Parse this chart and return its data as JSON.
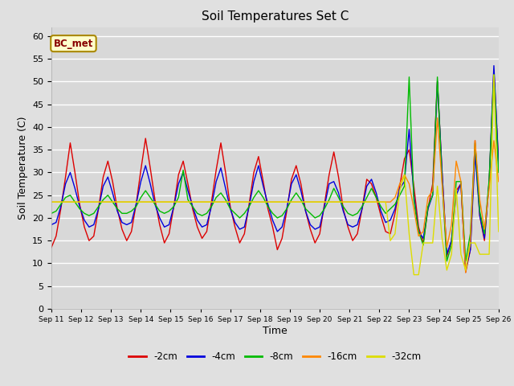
{
  "title": "Soil Temperatures Set C",
  "xlabel": "Time",
  "ylabel": "Soil Temperature (C)",
  "annotation": "BC_met",
  "ylim": [
    0,
    62
  ],
  "yticks": [
    0,
    5,
    10,
    15,
    20,
    25,
    30,
    35,
    40,
    45,
    50,
    55,
    60
  ],
  "colors": {
    "-2cm": "#dd0000",
    "-4cm": "#0000dd",
    "-8cm": "#00bb00",
    "-16cm": "#ff8800",
    "-32cm": "#dddd00"
  },
  "legend": [
    "-2cm",
    "-4cm",
    "-8cm",
    "-16cm",
    "-32cm"
  ],
  "background_color": "#e0e0e0",
  "plot_bg_color": "#d8d8d8",
  "xlabels": [
    "Sep 11",
    "Sep 12",
    "Sep 13",
    "Sep 14",
    "Sep 15",
    "Sep 16",
    "Sep 17",
    "Sep 18",
    "Sep 19",
    "Sep 20",
    "Sep 21",
    "Sep 22",
    "Sep 23",
    "Sep 24",
    "Sep 25",
    "Sep 26"
  ],
  "n_points": 96,
  "data_2cm": [
    13.5,
    16.0,
    22.0,
    29.0,
    36.5,
    30.0,
    23.0,
    18.0,
    15.0,
    16.0,
    22.0,
    29.0,
    32.5,
    28.0,
    22.0,
    17.5,
    15.0,
    17.0,
    23.0,
    30.5,
    37.5,
    31.0,
    24.0,
    18.5,
    14.5,
    16.5,
    22.5,
    29.5,
    32.5,
    27.5,
    22.0,
    18.0,
    15.5,
    17.0,
    23.5,
    30.5,
    36.5,
    30.0,
    22.5,
    18.0,
    14.5,
    16.5,
    23.0,
    30.0,
    33.5,
    28.0,
    22.0,
    18.0,
    13.0,
    15.5,
    21.5,
    28.5,
    31.5,
    27.5,
    21.5,
    17.5,
    14.5,
    16.5,
    23.0,
    29.5,
    34.5,
    29.0,
    22.0,
    18.0,
    15.0,
    16.5,
    22.0,
    28.5,
    27.5,
    24.5,
    20.5,
    17.0,
    16.5,
    21.0,
    27.0,
    33.0,
    35.0,
    27.0,
    18.0,
    14.5,
    22.0,
    27.5,
    50.0,
    30.0,
    11.5,
    15.0,
    26.0,
    27.5,
    8.0,
    13.0,
    37.0,
    20.5,
    15.0,
    28.0,
    52.5,
    32.0
  ],
  "data_4cm": [
    18.5,
    19.0,
    22.5,
    27.5,
    30.0,
    26.5,
    22.5,
    19.5,
    18.0,
    18.5,
    22.0,
    27.0,
    29.0,
    25.5,
    21.5,
    19.0,
    18.5,
    19.0,
    23.0,
    28.0,
    31.5,
    27.5,
    23.0,
    20.0,
    18.0,
    18.5,
    22.5,
    27.5,
    30.0,
    26.0,
    22.5,
    19.5,
    18.0,
    18.5,
    22.5,
    28.0,
    31.0,
    26.5,
    22.0,
    19.0,
    17.5,
    18.0,
    22.5,
    28.0,
    31.5,
    27.0,
    23.0,
    19.5,
    17.0,
    18.0,
    22.0,
    27.5,
    29.5,
    26.0,
    21.5,
    18.5,
    17.5,
    18.0,
    22.5,
    27.5,
    28.0,
    25.5,
    21.5,
    18.5,
    18.0,
    18.5,
    22.0,
    27.0,
    28.5,
    25.5,
    21.5,
    19.0,
    19.5,
    22.0,
    26.5,
    28.0,
    39.5,
    25.0,
    17.0,
    15.5,
    22.0,
    25.0,
    50.0,
    30.0,
    12.0,
    15.0,
    25.0,
    27.5,
    8.5,
    13.0,
    34.0,
    20.5,
    15.5,
    28.0,
    53.5,
    32.0
  ],
  "data_8cm": [
    21.0,
    21.5,
    23.0,
    24.5,
    25.0,
    23.5,
    22.0,
    21.0,
    20.5,
    21.0,
    22.5,
    24.0,
    25.0,
    23.5,
    22.0,
    21.0,
    21.0,
    21.5,
    22.5,
    24.5,
    26.0,
    24.5,
    23.0,
    21.5,
    21.0,
    21.5,
    22.5,
    24.5,
    30.5,
    24.0,
    22.5,
    21.0,
    20.5,
    21.0,
    22.5,
    24.5,
    25.5,
    24.0,
    22.0,
    21.0,
    20.0,
    21.0,
    22.5,
    24.5,
    26.0,
    24.5,
    22.5,
    21.0,
    20.0,
    20.5,
    22.0,
    24.0,
    25.5,
    24.0,
    22.0,
    21.0,
    20.0,
    20.5,
    22.0,
    24.0,
    26.5,
    24.5,
    22.5,
    21.0,
    20.5,
    21.0,
    22.5,
    24.5,
    26.5,
    24.5,
    22.5,
    21.0,
    22.0,
    23.0,
    25.0,
    27.0,
    51.0,
    24.0,
    17.0,
    14.0,
    22.5,
    25.0,
    51.0,
    28.0,
    10.5,
    14.0,
    28.0,
    28.0,
    10.5,
    16.5,
    36.5,
    21.5,
    16.5,
    28.5,
    51.5,
    30.0
  ],
  "data_16cm": [
    23.5,
    23.5,
    23.5,
    23.5,
    23.5,
    23.5,
    23.5,
    23.5,
    23.5,
    23.5,
    23.5,
    23.5,
    23.5,
    23.5,
    23.5,
    23.5,
    23.5,
    23.5,
    23.5,
    23.5,
    23.5,
    23.5,
    23.5,
    23.5,
    23.5,
    23.5,
    23.5,
    23.5,
    23.5,
    23.5,
    23.5,
    23.5,
    23.5,
    23.5,
    23.5,
    23.5,
    23.5,
    23.5,
    23.5,
    23.5,
    23.5,
    23.5,
    23.5,
    23.5,
    23.5,
    23.5,
    23.5,
    23.5,
    23.5,
    23.5,
    23.5,
    23.5,
    23.5,
    23.5,
    23.5,
    23.5,
    23.5,
    23.5,
    23.5,
    23.5,
    23.5,
    23.5,
    23.5,
    23.5,
    23.5,
    23.5,
    23.5,
    23.5,
    23.5,
    23.5,
    23.5,
    23.5,
    23.5,
    24.5,
    27.5,
    29.5,
    27.5,
    22.0,
    16.0,
    17.0,
    24.5,
    26.0,
    42.0,
    27.5,
    13.5,
    18.5,
    32.5,
    28.0,
    8.0,
    15.0,
    37.0,
    24.0,
    17.5,
    26.5,
    37.0,
    28.0
  ],
  "data_32cm": [
    23.5,
    23.5,
    23.5,
    23.5,
    23.5,
    23.5,
    23.5,
    23.5,
    23.5,
    23.5,
    23.5,
    23.5,
    23.5,
    23.5,
    23.5,
    23.5,
    23.5,
    23.5,
    23.5,
    23.5,
    23.5,
    23.5,
    23.5,
    23.5,
    23.5,
    23.5,
    23.5,
    23.5,
    23.5,
    23.5,
    23.5,
    23.5,
    23.5,
    23.5,
    23.5,
    23.5,
    23.5,
    23.5,
    23.5,
    23.5,
    23.5,
    23.5,
    23.5,
    23.5,
    23.5,
    23.5,
    23.5,
    23.5,
    23.5,
    23.5,
    23.5,
    23.5,
    23.5,
    23.5,
    23.5,
    23.5,
    23.5,
    23.5,
    23.5,
    23.5,
    23.5,
    23.5,
    23.5,
    23.5,
    23.5,
    23.5,
    23.5,
    23.5,
    23.5,
    23.5,
    23.5,
    23.5,
    15.0,
    16.5,
    26.0,
    29.5,
    16.5,
    7.5,
    7.5,
    14.5,
    14.5,
    14.5,
    27.0,
    15.5,
    8.5,
    12.0,
    26.5,
    12.0,
    8.5,
    14.5,
    14.5,
    12.0,
    12.0,
    12.0,
    51.5,
    17.0
  ]
}
